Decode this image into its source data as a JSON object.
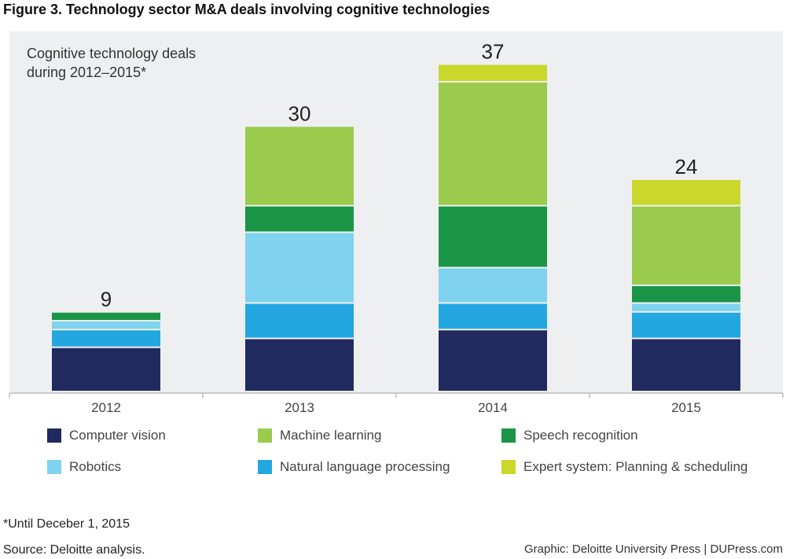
{
  "figure_title": "Figure 3. Technology sector M&A deals involving cognitive technologies",
  "subtitle_line1": "Cognitive technology deals",
  "subtitle_line2": "during 2012–2015*",
  "footnote": "*Until Deceber 1, 2015",
  "source": "Source: Deloitte analysis.",
  "credit": "Graphic: Deloitte University Press  |  DUPress.com",
  "colors": {
    "plot_background": "#eeeff0",
    "computer_vision": "#212a5e",
    "natural_language_processing": "#22a7e0",
    "robotics": "#7fd3ee",
    "speech_recognition": "#1a9548",
    "machine_learning": "#9acb4c",
    "expert_system": "#c9d82b"
  },
  "chart_data": {
    "type": "bar",
    "stacked": true,
    "categories": [
      "2012",
      "2013",
      "2014",
      "2015"
    ],
    "totals": [
      "9",
      "30",
      "37",
      "24"
    ],
    "ylim": [
      0,
      39
    ],
    "grid": false,
    "legend_position": "bottom",
    "series": [
      {
        "name": "Computer vision",
        "key": "computer_vision",
        "values": [
          5,
          6,
          7,
          6
        ]
      },
      {
        "name": "Natural language processing",
        "key": "natural_language_processing",
        "values": [
          2,
          4,
          3,
          3
        ]
      },
      {
        "name": "Robotics",
        "key": "robotics",
        "values": [
          1,
          8,
          4,
          1
        ]
      },
      {
        "name": "Speech recognition",
        "key": "speech_recognition",
        "values": [
          1,
          3,
          7,
          2
        ]
      },
      {
        "name": "Machine learning",
        "key": "machine_learning",
        "values": [
          0,
          9,
          14,
          9
        ]
      },
      {
        "name": "Expert system: Planning & scheduling",
        "key": "expert_system",
        "values": [
          0,
          0,
          2,
          3
        ]
      }
    ]
  }
}
